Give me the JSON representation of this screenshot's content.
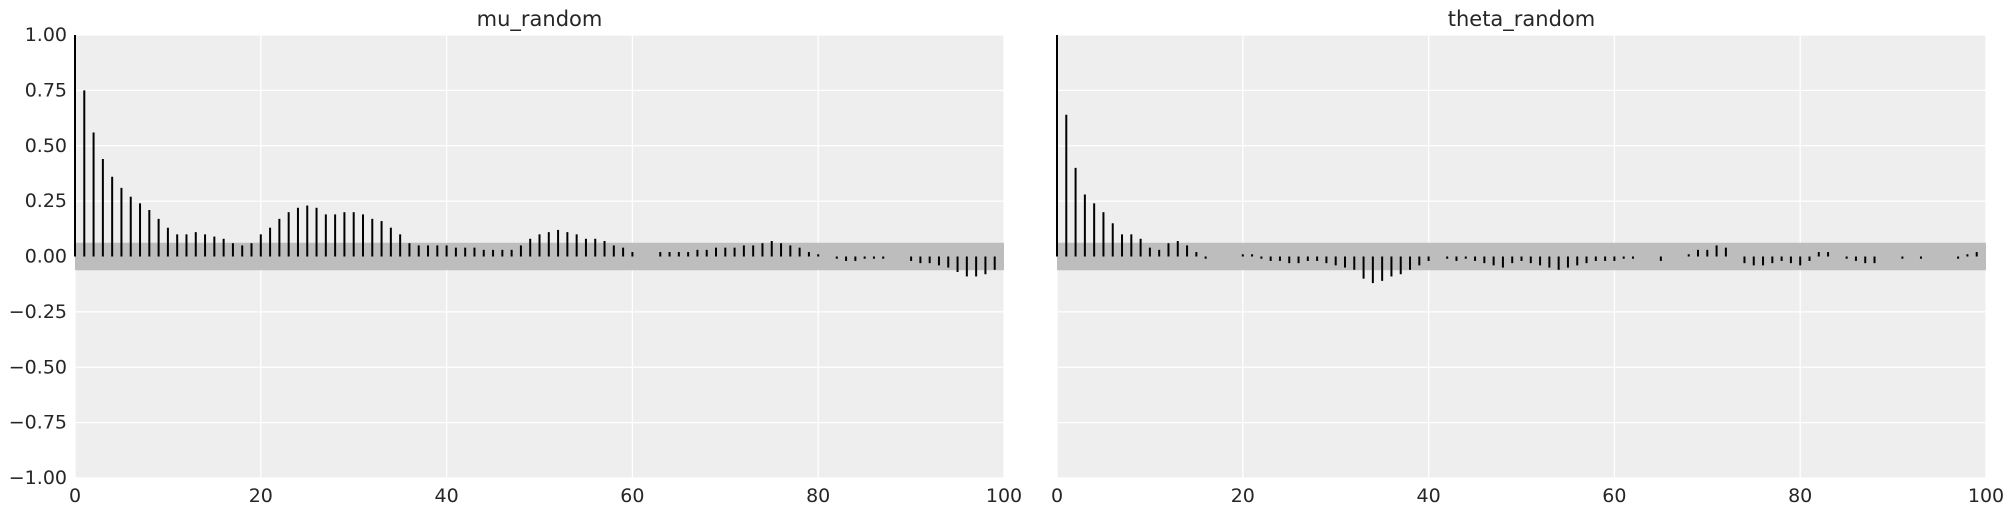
{
  "chart_data": [
    {
      "type": "bar",
      "title": "mu_random",
      "xlim": [
        0,
        100
      ],
      "ylim": [
        -1.0,
        1.0
      ],
      "xticks": [
        0,
        20,
        40,
        60,
        80,
        100
      ],
      "yticks": [
        "1.00",
        "0.75",
        "0.50",
        "0.25",
        "0.00",
        "−0.25",
        "−0.50",
        "−0.75",
        "−1.00"
      ],
      "ytick_values": [
        1.0,
        0.75,
        0.5,
        0.25,
        0.0,
        -0.25,
        -0.5,
        -0.75,
        -1.0
      ],
      "show_yticklabels": true,
      "grid": true,
      "confidence_band": [
        -0.062,
        0.062
      ],
      "lags": [
        0,
        1,
        2,
        3,
        4,
        5,
        6,
        7,
        8,
        9,
        10,
        11,
        12,
        13,
        14,
        15,
        16,
        17,
        18,
        19,
        20,
        21,
        22,
        23,
        24,
        25,
        26,
        27,
        28,
        29,
        30,
        31,
        32,
        33,
        34,
        35,
        36,
        37,
        38,
        39,
        40,
        41,
        42,
        43,
        44,
        45,
        46,
        47,
        48,
        49,
        50,
        51,
        52,
        53,
        54,
        55,
        56,
        57,
        58,
        59,
        60,
        61,
        62,
        63,
        64,
        65,
        66,
        67,
        68,
        69,
        70,
        71,
        72,
        73,
        74,
        75,
        76,
        77,
        78,
        79,
        80,
        81,
        82,
        83,
        84,
        85,
        86,
        87,
        88,
        89,
        90,
        91,
        92,
        93,
        94,
        95,
        96,
        97,
        98,
        99
      ],
      "values": [
        1.0,
        0.75,
        0.56,
        0.44,
        0.36,
        0.31,
        0.27,
        0.24,
        0.21,
        0.17,
        0.13,
        0.1,
        0.1,
        0.11,
        0.1,
        0.09,
        0.08,
        0.06,
        0.05,
        0.06,
        0.1,
        0.13,
        0.17,
        0.2,
        0.22,
        0.23,
        0.22,
        0.19,
        0.19,
        0.2,
        0.2,
        0.19,
        0.17,
        0.16,
        0.13,
        0.1,
        0.06,
        0.05,
        0.05,
        0.05,
        0.05,
        0.04,
        0.04,
        0.04,
        0.03,
        0.03,
        0.03,
        0.03,
        0.05,
        0.08,
        0.1,
        0.11,
        0.12,
        0.11,
        0.1,
        0.08,
        0.08,
        0.07,
        0.05,
        0.04,
        0.02,
        0.0,
        0.0,
        0.02,
        0.02,
        0.02,
        0.02,
        0.03,
        0.03,
        0.04,
        0.04,
        0.04,
        0.05,
        0.05,
        0.06,
        0.07,
        0.06,
        0.05,
        0.04,
        0.02,
        0.01,
        0.0,
        -0.01,
        -0.02,
        -0.02,
        -0.01,
        -0.01,
        -0.01,
        0.0,
        0.0,
        -0.02,
        -0.03,
        -0.03,
        -0.04,
        -0.05,
        -0.07,
        -0.09,
        -0.09,
        -0.08,
        -0.06
      ]
    },
    {
      "type": "bar",
      "title": "theta_random",
      "xlim": [
        0,
        100
      ],
      "ylim": [
        -1.0,
        1.0
      ],
      "xticks": [
        0,
        20,
        40,
        60,
        80,
        100
      ],
      "yticks": [],
      "ytick_values": [
        1.0,
        0.75,
        0.5,
        0.25,
        0.0,
        -0.25,
        -0.5,
        -0.75,
        -1.0
      ],
      "show_yticklabels": false,
      "grid": true,
      "confidence_band": [
        -0.062,
        0.062
      ],
      "lags": [
        0,
        1,
        2,
        3,
        4,
        5,
        6,
        7,
        8,
        9,
        10,
        11,
        12,
        13,
        14,
        15,
        16,
        17,
        18,
        19,
        20,
        21,
        22,
        23,
        24,
        25,
        26,
        27,
        28,
        29,
        30,
        31,
        32,
        33,
        34,
        35,
        36,
        37,
        38,
        39,
        40,
        41,
        42,
        43,
        44,
        45,
        46,
        47,
        48,
        49,
        50,
        51,
        52,
        53,
        54,
        55,
        56,
        57,
        58,
        59,
        60,
        61,
        62,
        63,
        64,
        65,
        66,
        67,
        68,
        69,
        70,
        71,
        72,
        73,
        74,
        75,
        76,
        77,
        78,
        79,
        80,
        81,
        82,
        83,
        84,
        85,
        86,
        87,
        88,
        89,
        90,
        91,
        92,
        93,
        94,
        95,
        96,
        97,
        98,
        99
      ],
      "values": [
        1.0,
        0.64,
        0.4,
        0.28,
        0.24,
        0.2,
        0.15,
        0.1,
        0.1,
        0.08,
        0.04,
        0.03,
        0.06,
        0.07,
        0.05,
        0.02,
        -0.01,
        0.0,
        0.0,
        0.0,
        0.01,
        0.01,
        -0.01,
        -0.02,
        -0.02,
        -0.03,
        -0.03,
        -0.02,
        -0.02,
        -0.03,
        -0.04,
        -0.05,
        -0.06,
        -0.1,
        -0.12,
        -0.11,
        -0.09,
        -0.08,
        -0.06,
        -0.04,
        -0.02,
        0.0,
        -0.01,
        -0.02,
        -0.01,
        -0.02,
        -0.03,
        -0.04,
        -0.05,
        -0.03,
        -0.02,
        -0.03,
        -0.04,
        -0.05,
        -0.06,
        -0.05,
        -0.04,
        -0.03,
        -0.02,
        -0.02,
        -0.02,
        -0.01,
        -0.01,
        0.0,
        0.0,
        -0.02,
        0.0,
        0.0,
        0.01,
        0.03,
        0.03,
        0.05,
        0.04,
        0.0,
        -0.03,
        -0.04,
        -0.04,
        -0.03,
        -0.02,
        -0.03,
        -0.04,
        -0.02,
        0.02,
        0.02,
        0.0,
        -0.01,
        -0.02,
        -0.03,
        -0.03,
        0.0,
        0.0,
        -0.01,
        0.0,
        -0.01,
        0.0,
        0.0,
        0.0,
        -0.01,
        0.01,
        0.02
      ]
    }
  ]
}
